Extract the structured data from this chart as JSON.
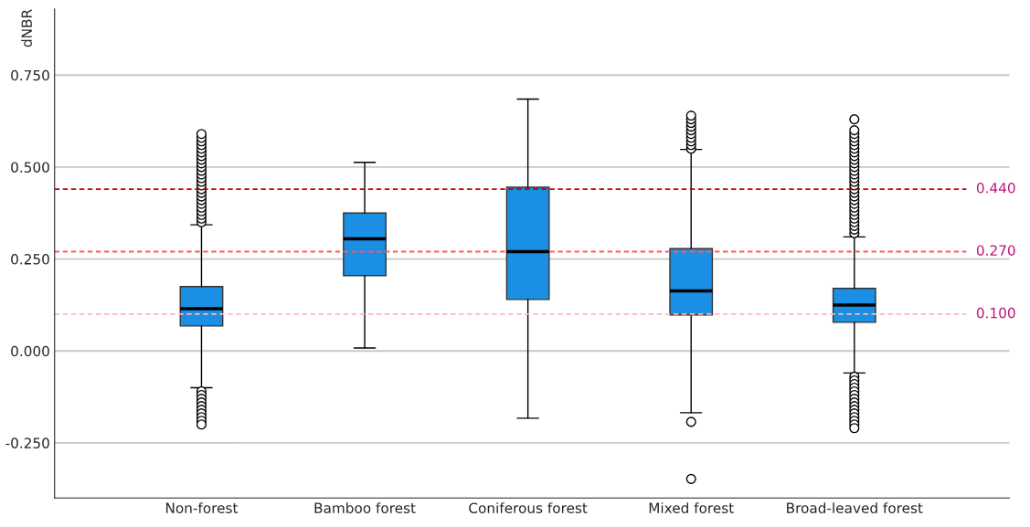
{
  "chart_data": {
    "type": "box",
    "ylabel": "dNBR",
    "categories": [
      "Non-forest",
      "Bamboo forest",
      "Coniferous forest",
      "Mixed forest",
      "Broad-leaved forest"
    ],
    "color": "#1a8fe3",
    "boxes": [
      {
        "low": -0.1,
        "q1": 0.068,
        "median": 0.115,
        "q3": 0.175,
        "high": 0.343,
        "outliers": [
          0.35,
          0.36,
          0.37,
          0.38,
          0.39,
          0.4,
          0.41,
          0.42,
          0.43,
          0.44,
          0.45,
          0.46,
          0.47,
          0.48,
          0.49,
          0.5,
          0.51,
          0.52,
          0.53,
          0.54,
          0.55,
          0.56,
          0.57,
          0.58,
          0.59,
          -0.11,
          -0.12,
          -0.13,
          -0.14,
          -0.15,
          -0.16,
          -0.17,
          -0.18,
          -0.19,
          -0.2
        ]
      },
      {
        "low": 0.008,
        "q1": 0.205,
        "median": 0.305,
        "q3": 0.375,
        "high": 0.513
      },
      {
        "low": -0.183,
        "q1": 0.14,
        "median": 0.27,
        "q3": 0.445,
        "high": 0.685
      },
      {
        "low": -0.168,
        "q1": 0.098,
        "median": 0.163,
        "q3": 0.278,
        "high": 0.548,
        "outliers": [
          0.55,
          0.56,
          0.57,
          0.58,
          0.59,
          0.6,
          0.61,
          0.62,
          0.63,
          0.64,
          -0.193,
          -0.348
        ]
      },
      {
        "low": -0.06,
        "q1": 0.078,
        "median": 0.125,
        "q3": 0.17,
        "high": 0.31,
        "outliers": [
          0.32,
          0.33,
          0.34,
          0.35,
          0.36,
          0.37,
          0.38,
          0.39,
          0.4,
          0.41,
          0.42,
          0.43,
          0.44,
          0.45,
          0.46,
          0.47,
          0.48,
          0.49,
          0.5,
          0.51,
          0.52,
          0.53,
          0.54,
          0.55,
          0.56,
          0.57,
          0.58,
          0.59,
          0.6,
          0.63,
          -0.07,
          -0.08,
          -0.09,
          -0.1,
          -0.11,
          -0.12,
          -0.13,
          -0.14,
          -0.15,
          -0.16,
          -0.17,
          -0.18,
          -0.19,
          -0.2,
          -0.21
        ]
      }
    ],
    "ylim": [
      -0.4,
      0.93
    ],
    "yticks": [
      {
        "value": -0.25,
        "label": "-0.250"
      },
      {
        "value": 0,
        "label": "0.000"
      },
      {
        "value": 0.25,
        "label": "0.250"
      },
      {
        "value": 0.5,
        "label": "0.500"
      },
      {
        "value": 0.75,
        "label": "0.750"
      }
    ],
    "grid": "y",
    "ref_lines": [
      {
        "axis": "y",
        "value": 0.44,
        "label": "0.440",
        "color": "#cc0000",
        "line_style": "dashed"
      },
      {
        "axis": "y",
        "value": 0.27,
        "label": "0.270",
        "color": "#ff5a5a",
        "line_style": "dashed"
      },
      {
        "axis": "y",
        "value": 0.1,
        "label": "0.100",
        "color": "#ffb6c1",
        "line_style": "dashed"
      }
    ]
  }
}
